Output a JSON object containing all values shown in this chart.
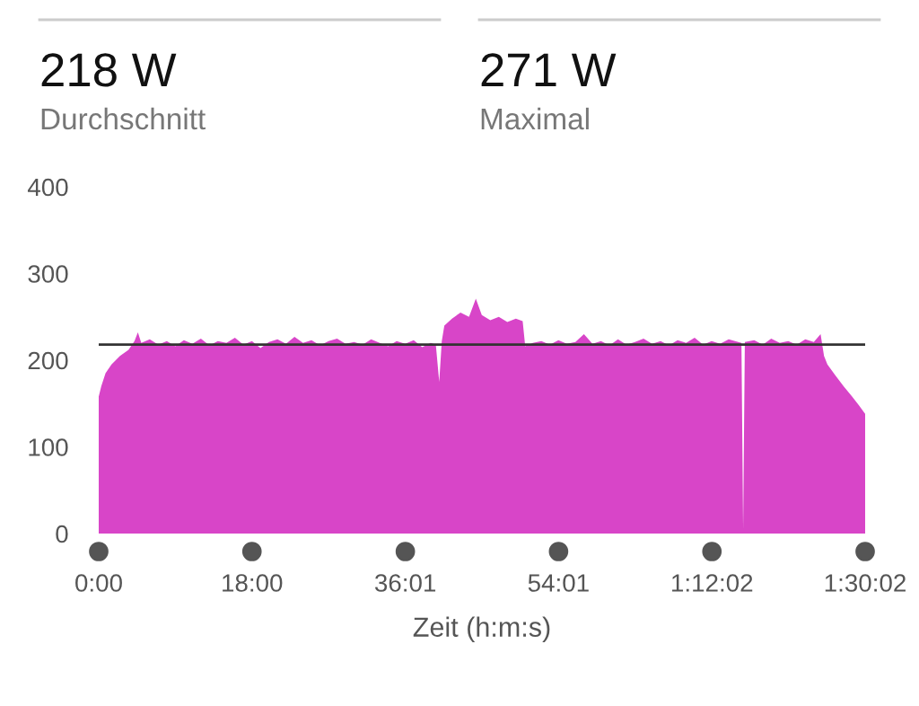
{
  "chart_data": {
    "type": "area",
    "xlabel": "Zeit (h:m:s)",
    "annotations": [
      "218 W",
      "Durchschnitt",
      "271 W",
      "Maximal"
    ],
    "x": [
      0,
      0.3,
      0.8,
      1.5,
      2.5,
      3.5,
      4.2,
      4.6,
      5,
      6,
      7,
      8,
      9,
      10,
      11,
      12,
      13,
      14,
      15,
      16,
      17,
      18,
      19,
      20,
      21,
      22,
      23,
      24,
      25,
      26,
      27,
      28,
      29,
      30,
      31,
      32,
      33,
      34,
      35,
      36,
      37,
      38,
      39,
      39.6,
      40,
      40.3,
      40.6,
      41.5,
      42.5,
      43.5,
      44.3,
      45,
      46,
      47,
      48,
      49,
      49.8,
      50.1,
      51,
      52,
      53,
      54,
      55,
      56,
      57,
      58,
      59,
      60,
      61,
      62,
      63,
      64,
      65,
      66,
      67,
      68,
      69,
      70,
      71,
      72,
      73,
      74,
      75.5,
      75.7,
      75.9,
      77,
      78,
      79,
      80,
      81,
      82,
      83,
      84,
      84.8,
      85.2,
      85.6,
      86.5,
      87.5,
      88.5,
      89.3,
      90.033
    ],
    "series": [
      {
        "color": "#d845c8",
        "values": [
          158,
          170,
          185,
          195,
          205,
          212,
          222,
          232,
          220,
          224,
          218,
          222,
          216,
          223,
          219,
          225,
          217,
          222,
          220,
          226,
          218,
          222,
          214,
          221,
          224,
          219,
          227,
          220,
          223,
          217,
          222,
          225,
          219,
          221,
          218,
          224,
          220,
          216,
          222,
          219,
          223,
          215,
          220,
          218,
          175,
          222,
          240,
          248,
          255,
          250,
          271,
          252,
          246,
          250,
          244,
          248,
          245,
          216,
          220,
          222,
          218,
          223,
          219,
          221,
          230,
          219,
          222,
          217,
          224,
          218,
          221,
          225,
          219,
          222,
          217,
          223,
          220,
          226,
          218,
          222,
          219,
          224,
          220,
          5,
          221,
          223,
          218,
          225,
          220,
          222,
          218,
          224,
          221,
          230,
          205,
          195,
          183,
          170,
          158,
          148,
          138
        ]
      }
    ],
    "xlim": [
      0,
      90.033
    ],
    "xticks": [
      {
        "value": 0,
        "label": "0:00"
      },
      {
        "value": 18,
        "label": "18:00"
      },
      {
        "value": 36.017,
        "label": "36:01"
      },
      {
        "value": 54.017,
        "label": "54:01"
      },
      {
        "value": 72.033,
        "label": "1:12:02"
      },
      {
        "value": 90.033,
        "label": "1:30:02"
      }
    ],
    "ylim": [
      0,
      400
    ],
    "yticks": [
      0,
      100,
      200,
      300,
      400
    ],
    "ref_lines": [
      {
        "axis": "y",
        "value": 218,
        "color": "#333333"
      }
    ],
    "grid": false,
    "legend": false
  }
}
